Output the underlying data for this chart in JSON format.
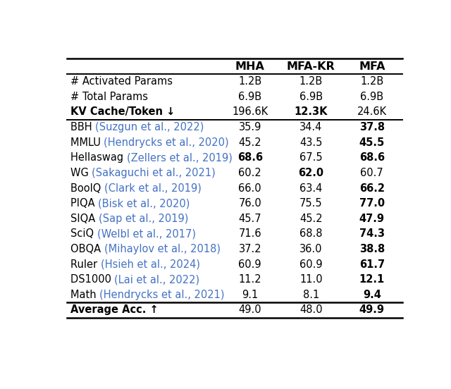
{
  "columns": [
    "",
    "MHA",
    "MFA-KR",
    "MFA"
  ],
  "rows": [
    {
      "label_parts": [
        {
          "text": "# Activated Params",
          "bold": false,
          "color": "black"
        }
      ],
      "values": [
        "1.2B",
        "1.2B",
        "1.2B"
      ],
      "bold_cols": []
    },
    {
      "label_parts": [
        {
          "text": "# Total Params",
          "bold": false,
          "color": "black"
        }
      ],
      "values": [
        "6.9B",
        "6.9B",
        "6.9B"
      ],
      "bold_cols": []
    },
    {
      "label_parts": [
        {
          "text": "KV Cache/Token ↓",
          "bold": true,
          "color": "black"
        }
      ],
      "values": [
        "196.6K",
        "12.3K",
        "24.6K"
      ],
      "bold_cols": [
        1
      ]
    },
    {
      "label_parts": [
        {
          "text": "BBH ",
          "bold": false,
          "color": "black"
        },
        {
          "text": "(Suzgun et al., 2022)",
          "bold": false,
          "color": "#4472C4"
        }
      ],
      "values": [
        "35.9",
        "34.4",
        "37.8"
      ],
      "bold_cols": [
        2
      ],
      "sep_before": true
    },
    {
      "label_parts": [
        {
          "text": "MMLU ",
          "bold": false,
          "color": "black"
        },
        {
          "text": "(Hendrycks et al., 2020)",
          "bold": false,
          "color": "#4472C4"
        }
      ],
      "values": [
        "45.2",
        "43.5",
        "45.5"
      ],
      "bold_cols": [
        2
      ]
    },
    {
      "label_parts": [
        {
          "text": "Hellaswag ",
          "bold": false,
          "color": "black"
        },
        {
          "text": "(Zellers et al., 2019)",
          "bold": false,
          "color": "#4472C4"
        }
      ],
      "values": [
        "68.6",
        "67.5",
        "68.6"
      ],
      "bold_cols": [
        0,
        2
      ]
    },
    {
      "label_parts": [
        {
          "text": "WG ",
          "bold": false,
          "color": "black"
        },
        {
          "text": "(Sakaguchi et al., 2021)",
          "bold": false,
          "color": "#4472C4"
        }
      ],
      "values": [
        "60.2",
        "62.0",
        "60.7"
      ],
      "bold_cols": [
        1
      ]
    },
    {
      "label_parts": [
        {
          "text": "BoolQ ",
          "bold": false,
          "color": "black"
        },
        {
          "text": "(Clark et al., 2019)",
          "bold": false,
          "color": "#4472C4"
        }
      ],
      "values": [
        "66.0",
        "63.4",
        "66.2"
      ],
      "bold_cols": [
        2
      ]
    },
    {
      "label_parts": [
        {
          "text": "PIQA ",
          "bold": false,
          "color": "black"
        },
        {
          "text": "(Bisk et al., 2020)",
          "bold": false,
          "color": "#4472C4"
        }
      ],
      "values": [
        "76.0",
        "75.5",
        "77.0"
      ],
      "bold_cols": [
        2
      ]
    },
    {
      "label_parts": [
        {
          "text": "SIQA ",
          "bold": false,
          "color": "black"
        },
        {
          "text": "(Sap et al., 2019)",
          "bold": false,
          "color": "#4472C4"
        }
      ],
      "values": [
        "45.7",
        "45.2",
        "47.9"
      ],
      "bold_cols": [
        2
      ]
    },
    {
      "label_parts": [
        {
          "text": "SciQ ",
          "bold": false,
          "color": "black"
        },
        {
          "text": "(Welbl et al., 2017)",
          "bold": false,
          "color": "#4472C4"
        }
      ],
      "values": [
        "71.6",
        "68.8",
        "74.3"
      ],
      "bold_cols": [
        2
      ]
    },
    {
      "label_parts": [
        {
          "text": "OBQA ",
          "bold": false,
          "color": "black"
        },
        {
          "text": "(Mihaylov et al., 2018)",
          "bold": false,
          "color": "#4472C4"
        }
      ],
      "values": [
        "37.2",
        "36.0",
        "38.8"
      ],
      "bold_cols": [
        2
      ]
    },
    {
      "label_parts": [
        {
          "text": "Ruler ",
          "bold": false,
          "color": "black"
        },
        {
          "text": "(Hsieh et al., 2024)",
          "bold": false,
          "color": "#4472C4"
        }
      ],
      "values": [
        "60.9",
        "60.9",
        "61.7"
      ],
      "bold_cols": [
        2
      ]
    },
    {
      "label_parts": [
        {
          "text": "DS1000 ",
          "bold": false,
          "color": "black"
        },
        {
          "text": "(Lai et al., 2022)",
          "bold": false,
          "color": "#4472C4"
        }
      ],
      "values": [
        "11.2",
        "11.0",
        "12.1"
      ],
      "bold_cols": [
        2
      ]
    },
    {
      "label_parts": [
        {
          "text": "Math ",
          "bold": false,
          "color": "black"
        },
        {
          "text": "(Hendrycks et al., 2021)",
          "bold": false,
          "color": "#4472C4"
        }
      ],
      "values": [
        "9.1",
        "8.1",
        "9.4"
      ],
      "bold_cols": [
        2
      ]
    },
    {
      "label_parts": [
        {
          "text": "Average Acc. ↑",
          "bold": true,
          "color": "black"
        }
      ],
      "values": [
        "49.0",
        "48.0",
        "49.9"
      ],
      "bold_cols": [
        2
      ],
      "sep_before": true,
      "footer": true
    }
  ],
  "citation_color": "#4472C4",
  "background_color": "white",
  "font_size": 10.5,
  "header_font_size": 11.5,
  "figsize": [
    6.4,
    5.52
  ],
  "dpi": 100
}
